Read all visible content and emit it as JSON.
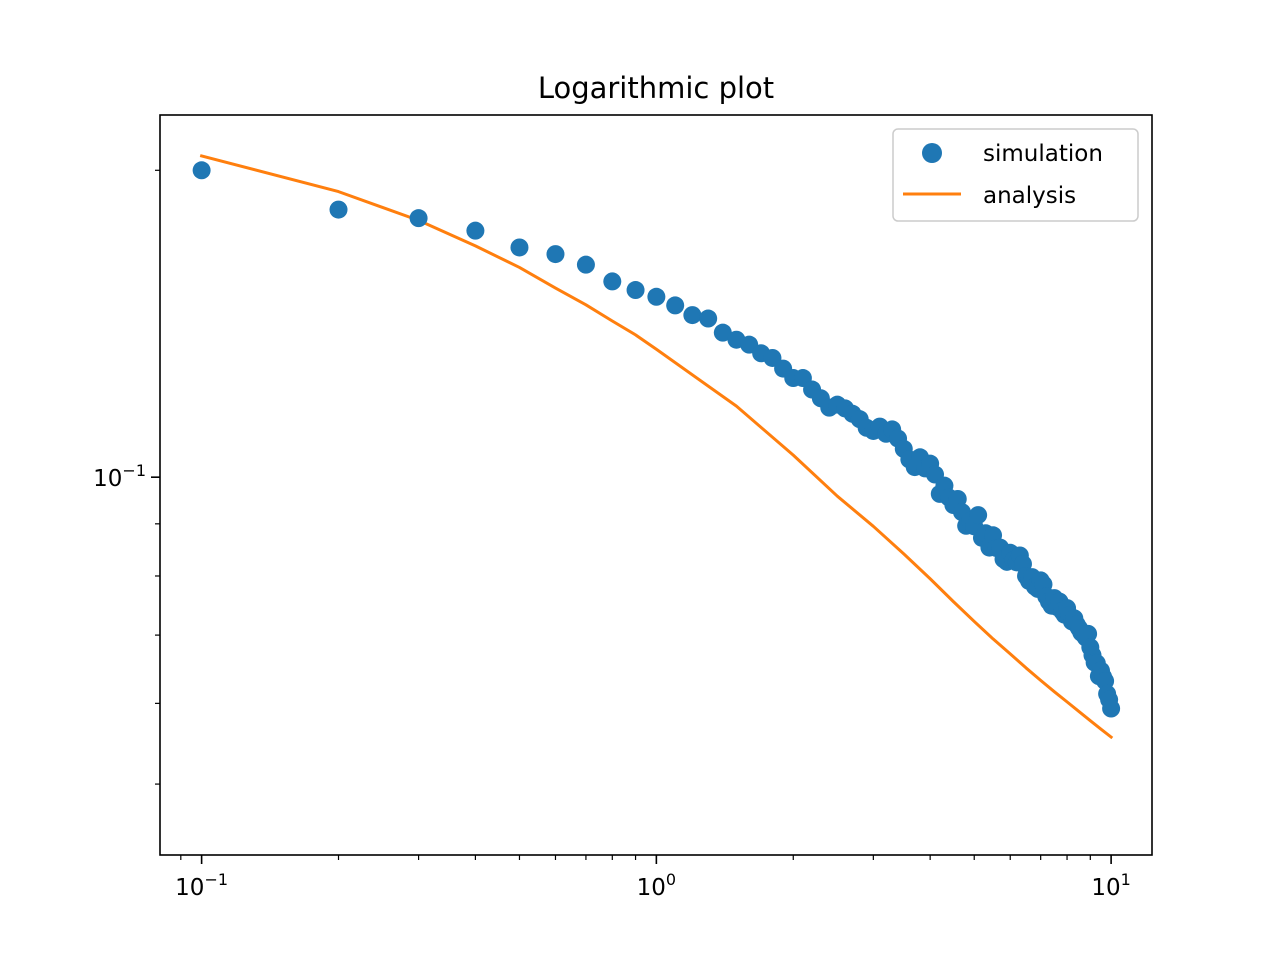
{
  "chart_data": {
    "type": "scatter",
    "title": "Logarithmic plot",
    "xlabel": "",
    "ylabel": "",
    "xscale": "log",
    "yscale": "log",
    "xlim": [
      0.081,
      12.3
    ],
    "ylim": [
      0.0426,
      0.2266
    ],
    "grid": false,
    "legend_position": "top-right",
    "colors": {
      "simulation": "#1f77b4",
      "analysis": "#ff7f0e",
      "axes": "#000000",
      "background": "#ffffff"
    },
    "x_ticks": [
      {
        "value": 0.1,
        "base": "10",
        "exponent": "−1"
      },
      {
        "value": 1,
        "base": "10",
        "exponent": "0"
      },
      {
        "value": 10,
        "base": "10",
        "exponent": "1"
      }
    ],
    "y_ticks": [
      {
        "value": 0.1,
        "base": "10",
        "exponent": "−1"
      }
    ],
    "series": [
      {
        "name": "simulation",
        "kind": "markers",
        "x": [
          0.1,
          0.2,
          0.3,
          0.4,
          0.5,
          0.6,
          0.7,
          0.8,
          0.9,
          1.0,
          1.1,
          1.2,
          1.3,
          1.4,
          1.5,
          1.6,
          1.7,
          1.8,
          1.9,
          2.0,
          2.1,
          2.2,
          2.3,
          2.4,
          2.5,
          2.6,
          2.7,
          2.8,
          2.9,
          3.0,
          3.1,
          3.2,
          3.3,
          3.4,
          3.5,
          3.6,
          3.7,
          3.8,
          3.9,
          4.0,
          4.1,
          4.2,
          4.3,
          4.4,
          4.5,
          4.6,
          4.7,
          4.8,
          4.9,
          5.0,
          5.1,
          5.2,
          5.3,
          5.4,
          5.5,
          5.6,
          5.7,
          5.8,
          5.9,
          6.0,
          6.1,
          6.2,
          6.3,
          6.4,
          6.5,
          6.6,
          6.7,
          6.8,
          6.9,
          7.0,
          7.1,
          7.2,
          7.3,
          7.4,
          7.5,
          7.6,
          7.7,
          7.8,
          7.9,
          8.0,
          8.1,
          8.2,
          8.3,
          8.4,
          8.5,
          8.6,
          8.7,
          8.8,
          8.9,
          9.0,
          9.1,
          9.2,
          9.3,
          9.4,
          9.5,
          9.6,
          9.7,
          9.8,
          9.9,
          10.0
        ],
        "y": [
          0.2,
          0.183,
          0.1795,
          0.1745,
          0.168,
          0.1655,
          0.1616,
          0.1556,
          0.1526,
          0.1503,
          0.1474,
          0.1442,
          0.1431,
          0.1386,
          0.1364,
          0.1349,
          0.1323,
          0.1309,
          0.1278,
          0.1251,
          0.1251,
          0.1219,
          0.1195,
          0.117,
          0.1178,
          0.1168,
          0.1154,
          0.114,
          0.1118,
          0.111,
          0.1121,
          0.1103,
          0.1114,
          0.1091,
          0.1066,
          0.1041,
          0.1023,
          0.1046,
          0.102,
          0.1031,
          0.1006,
          0.0963,
          0.0981,
          0.0955,
          0.0939,
          0.0952,
          0.0924,
          0.0896,
          0.0906,
          0.0895,
          0.0918,
          0.0872,
          0.0881,
          0.0853,
          0.0877,
          0.0852,
          0.0853,
          0.0831,
          0.0826,
          0.0843,
          0.0829,
          0.0825,
          0.0838,
          0.0822,
          0.08,
          0.0791,
          0.0798,
          0.0781,
          0.0777,
          0.0792,
          0.0785,
          0.0764,
          0.0755,
          0.0748,
          0.0761,
          0.0746,
          0.0755,
          0.0739,
          0.0733,
          0.0744,
          0.0732,
          0.0722,
          0.0727,
          0.0717,
          0.0711,
          0.0704,
          0.0701,
          0.0696,
          0.0702,
          0.0681,
          0.0669,
          0.0658,
          0.0657,
          0.0638,
          0.0646,
          0.0637,
          0.0631,
          0.0613,
          0.0605,
          0.0593
        ]
      },
      {
        "name": "analysis",
        "kind": "line",
        "x": [
          0.1,
          0.2,
          0.3,
          0.4,
          0.5,
          0.6,
          0.7,
          0.8,
          0.9,
          1.0,
          1.5,
          2.0,
          2.5,
          3.0,
          3.5,
          4.0,
          4.5,
          5.0,
          5.5,
          6.0,
          6.5,
          7.0,
          7.5,
          8.0,
          8.5,
          9.0,
          9.5,
          10.0
        ],
        "y": [
          0.2066,
          0.1906,
          0.1786,
          0.1686,
          0.1606,
          0.1533,
          0.1476,
          0.1423,
          0.1379,
          0.1335,
          0.1174,
          0.1051,
          0.0958,
          0.0895,
          0.0841,
          0.0795,
          0.0755,
          0.0722,
          0.0694,
          0.0671,
          0.065,
          0.0632,
          0.0616,
          0.0602,
          0.0589,
          0.0577,
          0.0566,
          0.0556
        ]
      }
    ]
  }
}
